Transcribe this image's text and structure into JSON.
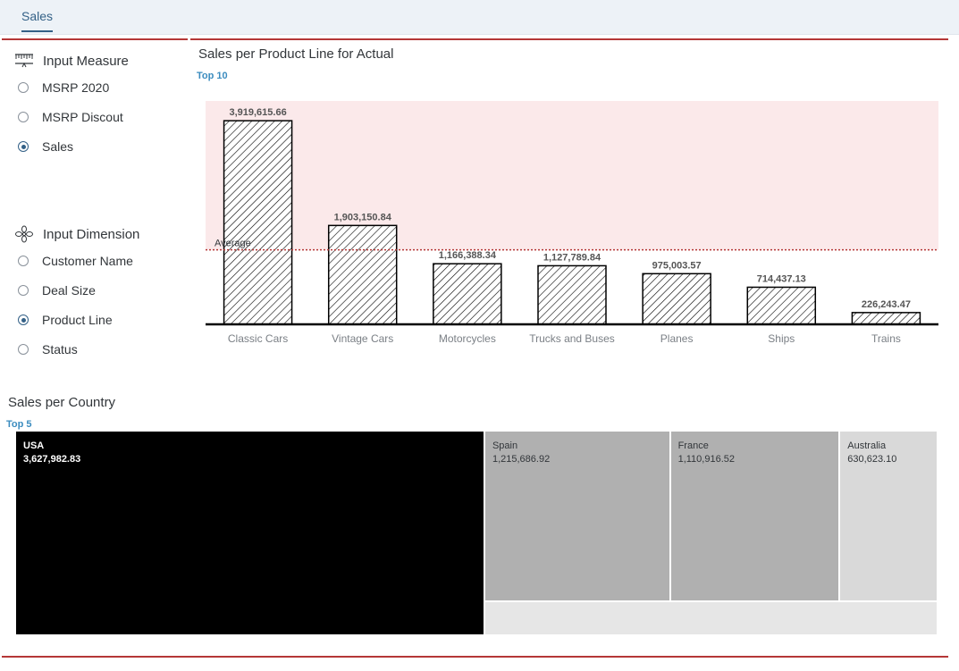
{
  "tabs": [
    {
      "label": "Sales"
    }
  ],
  "measure_panel": {
    "title": "Input Measure",
    "icon": "ruler-icon",
    "options": [
      {
        "label": "MSRP 2020",
        "selected": false
      },
      {
        "label": "MSRP Discout",
        "selected": false
      },
      {
        "label": "Sales",
        "selected": true
      }
    ]
  },
  "dimension_panel": {
    "title": "Input Dimension",
    "icon": "dimension-icon",
    "options": [
      {
        "label": "Customer Name",
        "selected": false
      },
      {
        "label": "Deal Size",
        "selected": false
      },
      {
        "label": "Product Line",
        "selected": true
      },
      {
        "label": "Status",
        "selected": false
      }
    ]
  },
  "bar_chart": {
    "title": "Sales per Product Line for Actual",
    "subtitle": "Top 10"
  },
  "treemap_chart": {
    "title": "Sales per Country",
    "subtitle": "Top 5"
  },
  "colors": {
    "accent": "#346187",
    "top_rule": "#b53737",
    "average_line": "#b53737",
    "average_band": "#fbe9ea",
    "subtitle_blue": "#3b8cbf"
  },
  "chart_data": [
    {
      "type": "bar",
      "title": "Sales per Product Line for Actual",
      "subtitle": "Top 10",
      "categories": [
        "Classic Cars",
        "Vintage Cars",
        "Motorcycles",
        "Trucks and Buses",
        "Planes",
        "Ships",
        "Trains"
      ],
      "values": [
        3919615.66,
        1903150.84,
        1166388.34,
        1127789.84,
        975003.57,
        714437.13,
        226243.47
      ],
      "value_labels": [
        "3,919,615.66",
        "1,903,150.84",
        "1,166,388.34",
        "1,127,789.84",
        "975,003.57",
        "714,437.13",
        "226,243.47"
      ],
      "reference_line": {
        "label": "Average",
        "value": 1433232.69
      },
      "band": {
        "from": 1433232.69,
        "to": 4300000
      },
      "ylim": [
        0,
        4300000
      ],
      "fill_pattern": "diagonal-hatch",
      "grid": false
    },
    {
      "type": "treemap",
      "title": "Sales per Country",
      "subtitle": "Top 5",
      "items": [
        {
          "name": "USA",
          "value": 3627982.83,
          "label": "3,627,982.83",
          "color": "#000000",
          "text_color": "#ffffff"
        },
        {
          "name": "Spain",
          "value": 1215686.92,
          "label": "1,215,686.92",
          "color": "#b0b0b0",
          "text_color": "#32363a"
        },
        {
          "name": "France",
          "value": 1110916.52,
          "label": "1,110,916.52",
          "color": "#b0b0b0",
          "text_color": "#32363a"
        },
        {
          "name": "Australia",
          "value": 630623.1,
          "label": "630,623.10",
          "color": "#d9d9d9",
          "text_color": "#32363a"
        },
        {
          "name": "",
          "value": 560000,
          "label": "",
          "color": "#e6e6e6",
          "text_color": "#32363a"
        }
      ]
    }
  ]
}
